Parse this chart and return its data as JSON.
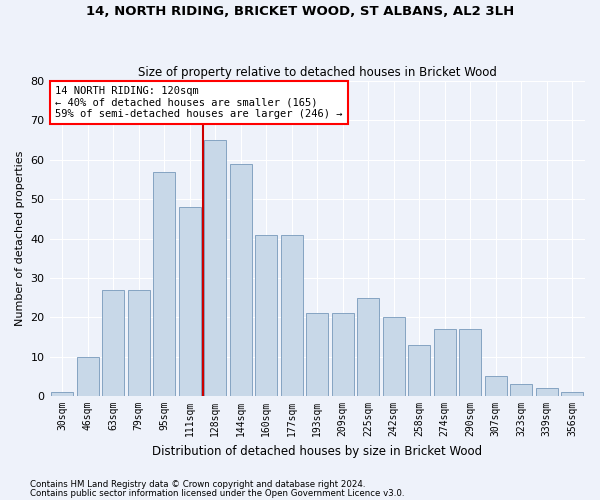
{
  "title1": "14, NORTH RIDING, BRICKET WOOD, ST ALBANS, AL2 3LH",
  "title2": "Size of property relative to detached houses in Bricket Wood",
  "xlabel": "Distribution of detached houses by size in Bricket Wood",
  "ylabel": "Number of detached properties",
  "footnote1": "Contains HM Land Registry data © Crown copyright and database right 2024.",
  "footnote2": "Contains public sector information licensed under the Open Government Licence v3.0.",
  "annotation_line1": "14 NORTH RIDING: 120sqm",
  "annotation_line2": "← 40% of detached houses are smaller (165)",
  "annotation_line3": "59% of semi-detached houses are larger (246) →",
  "bar_categories": [
    "30sqm",
    "46sqm",
    "63sqm",
    "79sqm",
    "95sqm",
    "111sqm",
    "128sqm",
    "144sqm",
    "160sqm",
    "177sqm",
    "193sqm",
    "209sqm",
    "225sqm",
    "242sqm",
    "258sqm",
    "274sqm",
    "290sqm",
    "307sqm",
    "323sqm",
    "339sqm",
    "356sqm"
  ],
  "bar_values": [
    1,
    10,
    27,
    27,
    57,
    48,
    65,
    59,
    41,
    41,
    21,
    21,
    25,
    20,
    13,
    17,
    17,
    5,
    3,
    2,
    1
  ],
  "bar_color": "#c8d8e8",
  "bar_edge_color": "#7799bb",
  "vline_color": "#cc0000",
  "background_color": "#eef2fa",
  "grid_color": "#ffffff",
  "ylim": [
    0,
    80
  ],
  "yticks": [
    0,
    10,
    20,
    30,
    40,
    50,
    60,
    70,
    80
  ]
}
